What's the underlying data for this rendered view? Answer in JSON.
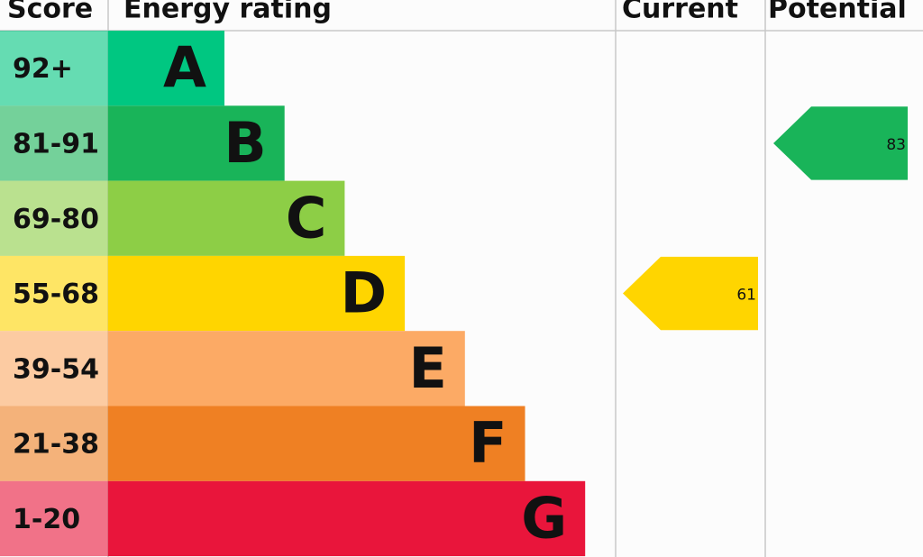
{
  "headers": {
    "score": "Score",
    "rating": "Energy rating",
    "current": "Current",
    "potential": "Potential"
  },
  "bands": [
    {
      "range": "92+",
      "letter": "A",
      "color": "#00c781"
    },
    {
      "range": "81-91",
      "letter": "B",
      "color": "#19b459"
    },
    {
      "range": "69-80",
      "letter": "C",
      "color": "#8dce46"
    },
    {
      "range": "55-68",
      "letter": "D",
      "color": "#ffd500"
    },
    {
      "range": "39-54",
      "letter": "E",
      "color": "#fcaa65"
    },
    {
      "range": "21-38",
      "letter": "F",
      "color": "#ef8023"
    },
    {
      "range": "1-20",
      "letter": "G",
      "color": "#e9153b"
    }
  ],
  "current": {
    "value": 61
  },
  "potential": {
    "value": 83
  }
}
